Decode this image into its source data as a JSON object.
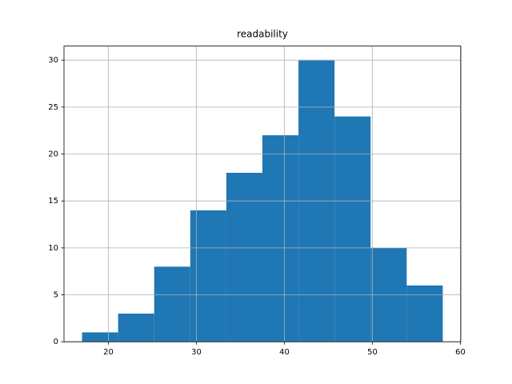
{
  "chart_data": {
    "type": "histogram",
    "title": "readability",
    "bins": [
      17,
      21.1,
      25.2,
      29.3,
      33.4,
      37.5,
      41.6,
      45.7,
      49.8,
      53.9,
      58
    ],
    "values": [
      1,
      3,
      8,
      14,
      18,
      22,
      30,
      24,
      10,
      6
    ],
    "color": "#1f77b4",
    "xlim": [
      14.95,
      60.05
    ],
    "xticks": [
      20,
      30,
      40,
      50,
      60
    ],
    "ylim": [
      0,
      31.5
    ],
    "yticks": [
      0,
      5,
      10,
      15,
      20,
      25,
      30
    ],
    "grid": true
  }
}
